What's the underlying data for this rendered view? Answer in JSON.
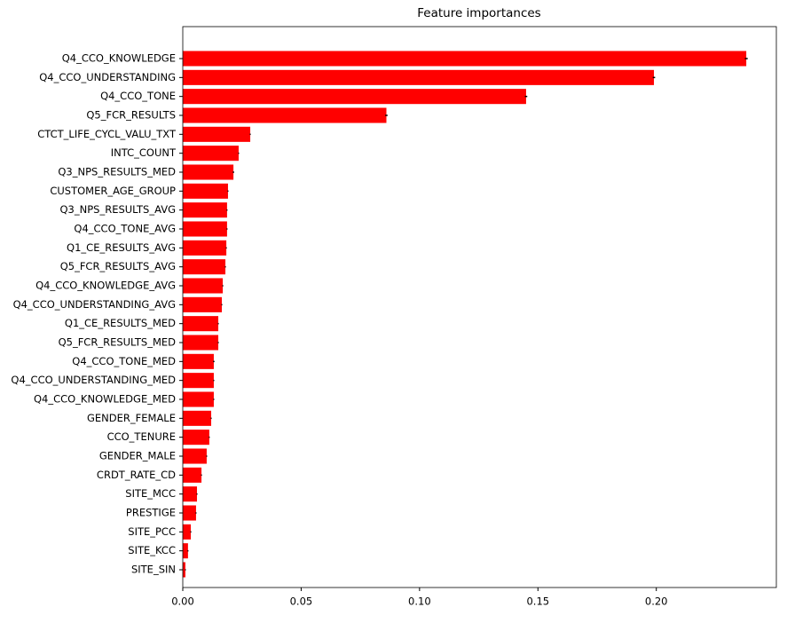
{
  "chart_data": {
    "type": "barh",
    "title": "Feature importances",
    "categories": [
      "Q4_CCO_KNOWLEDGE",
      "Q4_CCO_UNDERSTANDING",
      "Q4_CCO_TONE",
      "Q5_FCR_RESULTS",
      "CTCT_LIFE_CYCL_VALU_TXT",
      "INTC_COUNT",
      "Q3_NPS_RESULTS_MED",
      "CUSTOMER_AGE_GROUP",
      "Q3_NPS_RESULTS_AVG",
      "Q4_CCO_TONE_AVG",
      "Q1_CE_RESULTS_AVG",
      "Q5_FCR_RESULTS_AVG",
      "Q4_CCO_KNOWLEDGE_AVG",
      "Q4_CCO_UNDERSTANDING_AVG",
      "Q1_CE_RESULTS_MED",
      "Q5_FCR_RESULTS_MED",
      "Q4_CCO_TONE_MED",
      "Q4_CCO_UNDERSTANDING_MED",
      "Q4_CCO_KNOWLEDGE_MED",
      "GENDER_FEMALE",
      "CCO_TENURE",
      "GENDER_MALE",
      "CRDT_RATE_CD",
      "SITE_MCC",
      "PRESTIGE",
      "SITE_PCC",
      "SITE_KCC",
      "SITE_SIN"
    ],
    "values": [
      0.238,
      0.199,
      0.145,
      0.086,
      0.0285,
      0.0236,
      0.0214,
      0.0191,
      0.0187,
      0.0187,
      0.0184,
      0.018,
      0.0169,
      0.0165,
      0.015,
      0.015,
      0.0131,
      0.0131,
      0.0131,
      0.012,
      0.0112,
      0.0101,
      0.0079,
      0.006,
      0.0056,
      0.0034,
      0.0022,
      0.0011
    ],
    "errors": [
      0.0006,
      0.0005,
      0.0005,
      0.0005,
      0.0002,
      0.0002,
      0.0003,
      0.0002,
      0.0002,
      0.0002,
      0.0002,
      0.0002,
      0.0002,
      0.0002,
      0.0002,
      0.0002,
      0.0003,
      0.0002,
      0.0002,
      0.0002,
      0.0002,
      0.0002,
      0.0002,
      0.0002,
      0.0002,
      0.0002,
      0.0002,
      0.0002
    ],
    "color": "#ff0000",
    "error_color": "#000000",
    "xlim": [
      0,
      0.2507
    ],
    "xticks": [
      {
        "value": 0,
        "label": "0.00"
      },
      0.05,
      {
        "value": 0.1,
        "label": "0.10"
      },
      0.15,
      {
        "value": 0.2,
        "label": "0.20"
      }
    ]
  }
}
